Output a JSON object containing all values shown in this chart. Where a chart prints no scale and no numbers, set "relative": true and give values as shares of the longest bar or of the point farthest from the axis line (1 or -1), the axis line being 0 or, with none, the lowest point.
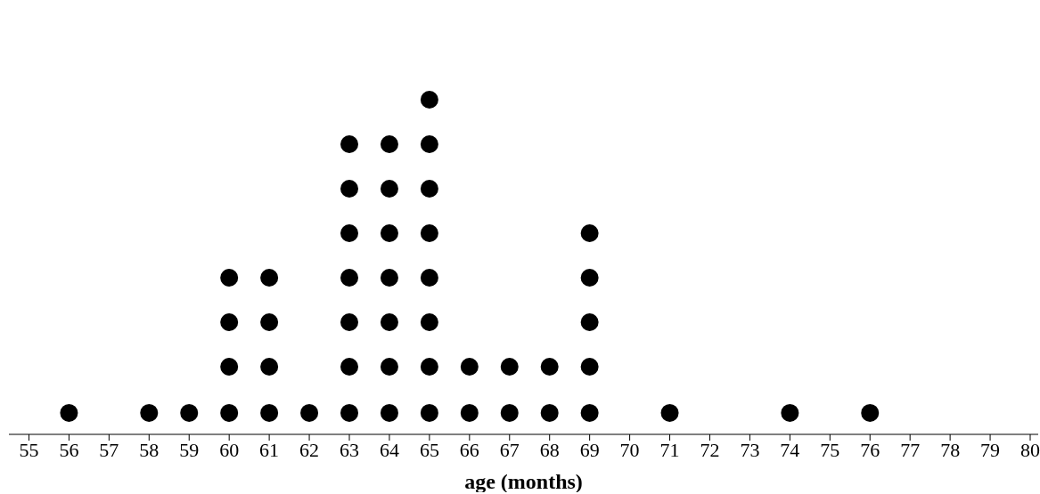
{
  "chart_data": {
    "type": "scatter",
    "xlabel": "age (months)",
    "relative": true,
    "series": [
      {
        "color": "#000000",
        "x": [
          56,
          58,
          59,
          60,
          60,
          60,
          60,
          61,
          61,
          61,
          61,
          62,
          63,
          63,
          63,
          63,
          63,
          63,
          63,
          64,
          64,
          64,
          64,
          64,
          64,
          64,
          65,
          65,
          65,
          65,
          65,
          65,
          65,
          65,
          66,
          66,
          67,
          67,
          68,
          68,
          69,
          69,
          69,
          69,
          69,
          71,
          74,
          76
        ],
        "values": [
          0.064,
          0.064,
          0.064,
          0.064,
          0.202,
          0.335,
          0.468,
          0.064,
          0.202,
          0.335,
          0.468,
          0.064,
          0.064,
          0.202,
          0.335,
          0.468,
          0.601,
          0.734,
          0.867,
          0.064,
          0.202,
          0.335,
          0.468,
          0.601,
          0.734,
          0.867,
          0.064,
          0.202,
          0.335,
          0.468,
          0.601,
          0.734,
          0.867,
          1,
          0.064,
          0.202,
          0.064,
          0.202,
          0.064,
          0.202,
          0.064,
          0.202,
          0.335,
          0.468,
          0.601,
          0.064,
          0.064,
          0.064
        ]
      }
    ],
    "xlim": [
      54.5,
      80.2
    ],
    "xticks": [
      55,
      56,
      57,
      58,
      59,
      60,
      61,
      62,
      63,
      64,
      65,
      66,
      67,
      68,
      69,
      70,
      71,
      72,
      73,
      74,
      75,
      76,
      77,
      78,
      79,
      80
    ],
    "marker": "circle"
  }
}
